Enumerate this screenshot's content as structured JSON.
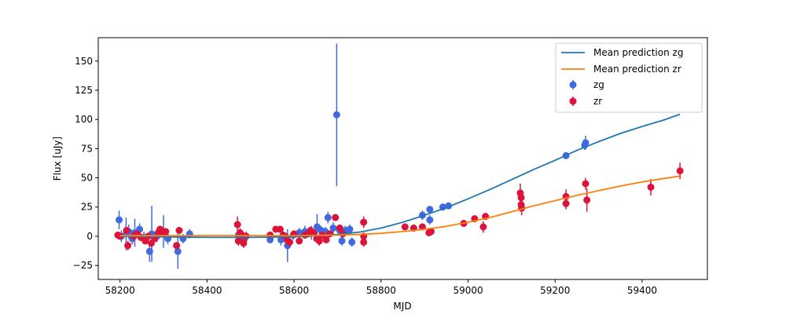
{
  "chart_data": {
    "type": "scatter",
    "xlabel": "MJD",
    "ylabel": "Flux [uJy]",
    "xlim": [
      58150,
      59550
    ],
    "ylim": [
      -37,
      170
    ],
    "xticks": [
      58200,
      58400,
      58600,
      58800,
      59000,
      59200,
      59400
    ],
    "yticks": [
      -25,
      0,
      25,
      50,
      75,
      100,
      125,
      150
    ],
    "grid": false,
    "legend_placement": "top-right",
    "series": [
      {
        "name": "zg",
        "kind": "errorbar",
        "color": "#4169e1",
        "points": [
          {
            "x": 58198,
            "y": 14,
            "err": 8
          },
          {
            "x": 58203,
            "y": 0,
            "err": 5
          },
          {
            "x": 58214,
            "y": 2,
            "err": 14
          },
          {
            "x": 58220,
            "y": 4,
            "err": 6
          },
          {
            "x": 58228,
            "y": -2,
            "err": 5
          },
          {
            "x": 58234,
            "y": 3,
            "err": 12
          },
          {
            "x": 58245,
            "y": 6,
            "err": 5
          },
          {
            "x": 58255,
            "y": -1,
            "err": 5
          },
          {
            "x": 58268,
            "y": -13,
            "err": 9
          },
          {
            "x": 58273,
            "y": 2,
            "err": 24
          },
          {
            "x": 58285,
            "y": 0,
            "err": 5
          },
          {
            "x": 58300,
            "y": 4,
            "err": 14
          },
          {
            "x": 58310,
            "y": -2,
            "err": 5
          },
          {
            "x": 58333,
            "y": -13,
            "err": 15
          },
          {
            "x": 58345,
            "y": -2,
            "err": 4
          },
          {
            "x": 58360,
            "y": 2,
            "err": 4
          },
          {
            "x": 58472,
            "y": 1,
            "err": 3
          },
          {
            "x": 58485,
            "y": -3,
            "err": 6
          },
          {
            "x": 58545,
            "y": -3,
            "err": 3
          },
          {
            "x": 58570,
            "y": -3,
            "err": 5
          },
          {
            "x": 58585,
            "y": -8,
            "err": 14
          },
          {
            "x": 58598,
            "y": 1,
            "err": 4
          },
          {
            "x": 58612,
            "y": 3,
            "err": 4
          },
          {
            "x": 58625,
            "y": 4,
            "err": 5
          },
          {
            "x": 58640,
            "y": 3,
            "err": 6
          },
          {
            "x": 58653,
            "y": 8,
            "err": 11
          },
          {
            "x": 58662,
            "y": 5,
            "err": 4
          },
          {
            "x": 58672,
            "y": 4,
            "err": 4
          },
          {
            "x": 58678,
            "y": 16,
            "err": 5
          },
          {
            "x": 58690,
            "y": 7,
            "err": 5
          },
          {
            "x": 58698,
            "y": 104,
            "err": 61
          },
          {
            "x": 58705,
            "y": 5,
            "err": 4
          },
          {
            "x": 58710,
            "y": -4,
            "err": 4
          },
          {
            "x": 58718,
            "y": 5,
            "err": 4
          },
          {
            "x": 58728,
            "y": 6,
            "err": 4
          },
          {
            "x": 58733,
            "y": -5,
            "err": 4
          },
          {
            "x": 58895,
            "y": 18,
            "err": 4
          },
          {
            "x": 58912,
            "y": 23,
            "err": 3
          },
          {
            "x": 58912,
            "y": 14,
            "err": 4
          },
          {
            "x": 58942,
            "y": 25,
            "err": 3
          },
          {
            "x": 58955,
            "y": 26,
            "err": 3
          },
          {
            "x": 59225,
            "y": 69,
            "err": 3
          },
          {
            "x": 59268,
            "y": 78,
            "err": 4
          },
          {
            "x": 59270,
            "y": 80,
            "err": 6
          }
        ]
      },
      {
        "name": "zr",
        "kind": "errorbar",
        "color": "#dc143c",
        "points": [
          {
            "x": 58195,
            "y": 1,
            "err": 3
          },
          {
            "x": 58200,
            "y": 0,
            "err": 3
          },
          {
            "x": 58215,
            "y": 5,
            "err": 3
          },
          {
            "x": 58218,
            "y": -8,
            "err": 4
          },
          {
            "x": 58232,
            "y": 0,
            "err": 4
          },
          {
            "x": 58240,
            "y": 2,
            "err": 3
          },
          {
            "x": 58248,
            "y": -1,
            "err": 3
          },
          {
            "x": 58258,
            "y": -4,
            "err": 3
          },
          {
            "x": 58265,
            "y": 0,
            "err": 3
          },
          {
            "x": 58272,
            "y": -6,
            "err": 3
          },
          {
            "x": 58280,
            "y": -2,
            "err": 3
          },
          {
            "x": 58288,
            "y": 3,
            "err": 3
          },
          {
            "x": 58292,
            "y": 6,
            "err": 3
          },
          {
            "x": 58298,
            "y": 2,
            "err": 3
          },
          {
            "x": 58305,
            "y": 4,
            "err": 3
          },
          {
            "x": 58330,
            "y": -8,
            "err": 3
          },
          {
            "x": 58336,
            "y": 5,
            "err": 3
          },
          {
            "x": 58470,
            "y": 10,
            "err": 7
          },
          {
            "x": 58472,
            "y": -4,
            "err": 4
          },
          {
            "x": 58476,
            "y": 3,
            "err": 4
          },
          {
            "x": 58480,
            "y": 1,
            "err": 4
          },
          {
            "x": 58484,
            "y": -6,
            "err": 4
          },
          {
            "x": 58490,
            "y": 0,
            "err": 4
          },
          {
            "x": 58545,
            "y": 1,
            "err": 3
          },
          {
            "x": 58558,
            "y": 6,
            "err": 3
          },
          {
            "x": 58568,
            "y": 6,
            "err": 3
          },
          {
            "x": 58575,
            "y": 1,
            "err": 3
          },
          {
            "x": 58580,
            "y": 0,
            "err": 3
          },
          {
            "x": 58584,
            "y": -3,
            "err": 4
          },
          {
            "x": 58590,
            "y": -5,
            "err": 4
          },
          {
            "x": 58600,
            "y": 2,
            "err": 3
          },
          {
            "x": 58612,
            "y": -4,
            "err": 3
          },
          {
            "x": 58625,
            "y": 1,
            "err": 3
          },
          {
            "x": 58632,
            "y": 2,
            "err": 3
          },
          {
            "x": 58638,
            "y": 5,
            "err": 3
          },
          {
            "x": 58645,
            "y": 3,
            "err": 3
          },
          {
            "x": 58652,
            "y": -2,
            "err": 3
          },
          {
            "x": 58658,
            "y": -4,
            "err": 4
          },
          {
            "x": 58665,
            "y": 1,
            "err": 3
          },
          {
            "x": 58674,
            "y": -3,
            "err": 3
          },
          {
            "x": 58682,
            "y": 2,
            "err": 3
          },
          {
            "x": 58695,
            "y": 16,
            "err": 3
          },
          {
            "x": 58705,
            "y": 7,
            "err": 3
          },
          {
            "x": 58712,
            "y": 2,
            "err": 3
          },
          {
            "x": 58760,
            "y": 12,
            "err": 5
          },
          {
            "x": 58760,
            "y": -5,
            "err": 4
          },
          {
            "x": 58760,
            "y": 0,
            "err": 3
          },
          {
            "x": 58855,
            "y": 8,
            "err": 3
          },
          {
            "x": 58875,
            "y": 7,
            "err": 3
          },
          {
            "x": 58895,
            "y": 8,
            "err": 3
          },
          {
            "x": 58910,
            "y": 3,
            "err": 3
          },
          {
            "x": 58915,
            "y": 4,
            "err": 3
          },
          {
            "x": 58990,
            "y": 11,
            "err": 3
          },
          {
            "x": 59015,
            "y": 15,
            "err": 3
          },
          {
            "x": 59035,
            "y": 8,
            "err": 5
          },
          {
            "x": 59040,
            "y": 17,
            "err": 3
          },
          {
            "x": 59120,
            "y": 37,
            "err": 8
          },
          {
            "x": 59122,
            "y": 33,
            "err": 5
          },
          {
            "x": 59122,
            "y": 27,
            "err": 5
          },
          {
            "x": 59123,
            "y": 24,
            "err": 6
          },
          {
            "x": 59225,
            "y": 34,
            "err": 6
          },
          {
            "x": 59225,
            "y": 28,
            "err": 5
          },
          {
            "x": 59270,
            "y": 45,
            "err": 5
          },
          {
            "x": 59273,
            "y": 31,
            "err": 10
          },
          {
            "x": 59420,
            "y": 42,
            "err": 7
          },
          {
            "x": 59487,
            "y": 56,
            "err": 7
          }
        ]
      },
      {
        "name": "Mean prediction zg",
        "kind": "line",
        "color": "#1f77b4",
        "x": [
          58200,
          58300,
          58400,
          58500,
          58600,
          58700,
          58750,
          58800,
          58850,
          58900,
          58950,
          59000,
          59050,
          59100,
          59150,
          59200,
          59250,
          59300,
          59350,
          59400,
          59450,
          59487
        ],
        "y": [
          0,
          -0.5,
          -1,
          -1,
          -0.5,
          1.5,
          3.5,
          7,
          12,
          18,
          24.5,
          32,
          40,
          48.5,
          57,
          65,
          73.5,
          81,
          88,
          94,
          99.5,
          104.5
        ]
      },
      {
        "name": "Mean prediction zr",
        "kind": "line",
        "color": "#ff7f0e",
        "x": [
          58200,
          58300,
          58400,
          58500,
          58600,
          58700,
          58750,
          58800,
          58850,
          58900,
          58950,
          59000,
          59050,
          59100,
          59150,
          59200,
          59250,
          59300,
          59350,
          59400,
          59450,
          59487
        ],
        "y": [
          0.5,
          0.5,
          0.5,
          0.5,
          0.5,
          1,
          1.5,
          2.5,
          4,
          6,
          8.5,
          12,
          16,
          21,
          26,
          30.5,
          35,
          39,
          43,
          46.5,
          49.5,
          51.5
        ]
      }
    ],
    "legend": [
      {
        "label": "Mean prediction zg",
        "type": "line",
        "color": "#1f77b4"
      },
      {
        "label": "Mean prediction zr",
        "type": "line",
        "color": "#ff7f0e"
      },
      {
        "label": "zg",
        "type": "marker",
        "color": "#4169e1"
      },
      {
        "label": "zr",
        "type": "marker",
        "color": "#dc143c"
      }
    ]
  }
}
